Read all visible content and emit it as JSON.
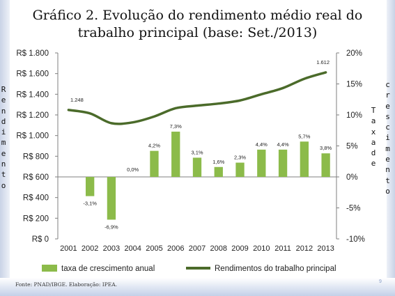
{
  "title_line1": "Gráfico 2. Evolução do rendimento médio real do",
  "title_line2": "trabalho principal (base: Set./2013)",
  "left_axis_label": "Rendimento",
  "right_axis_label_1": "Taxa de",
  "right_axis_label_2": "crescimento",
  "source": "Fonte: PNAD/IBGE. Elaboração: IPEA.",
  "page_number": "9",
  "chart_data": {
    "type": "bar+line",
    "categories": [
      "2001",
      "2002",
      "2003",
      "2004",
      "2005",
      "2006",
      "2007",
      "2008",
      "2009",
      "2010",
      "2011",
      "2012",
      "2013"
    ],
    "series": [
      {
        "name": "taxa de crescimento anual",
        "type": "bar",
        "axis": "right",
        "color": "#8cbb4a",
        "values": [
          null,
          -3.1,
          -6.9,
          0.0,
          4.2,
          7.3,
          3.1,
          1.6,
          2.3,
          4.4,
          4.4,
          5.7,
          3.8
        ],
        "labels": [
          "",
          "-3,1%",
          "-6,9%",
          "0,0%",
          "4,2%",
          "7,3%",
          "3,1%",
          "1,6%",
          "2,3%",
          "4,4%",
          "4,4%",
          "5,7%",
          "3,8%"
        ]
      },
      {
        "name": "Rendimentos do trabalho principal",
        "type": "line",
        "axis": "left",
        "color": "#4b6b2a",
        "values": [
          1248,
          1215,
          1120,
          1128,
          1185,
          1265,
          1290,
          1310,
          1340,
          1400,
          1460,
          1550,
          1612
        ],
        "point_labels": [
          {
            "x": "2001",
            "text": "1.248"
          },
          {
            "x": "2013",
            "text": "1.612"
          }
        ]
      }
    ],
    "y_left": {
      "min": 0,
      "max": 1800,
      "ticks": [
        0,
        200,
        400,
        600,
        800,
        1000,
        1200,
        1400,
        1600,
        1800
      ],
      "tick_labels": [
        "R$ 0",
        "R$ 200",
        "R$ 400",
        "R$ 600",
        "R$ 800",
        "R$ 1.000",
        "R$ 1.200",
        "R$ 1.400",
        "R$ 1.600",
        "R$ 1.800"
      ]
    },
    "y_right": {
      "min": -10,
      "max": 20,
      "ticks": [
        -10,
        -5,
        0,
        5,
        10,
        15,
        20
      ],
      "tick_labels": [
        "-10%",
        "-5%",
        "0%",
        "5%",
        "10%",
        "15%",
        "20%"
      ]
    },
    "grid": false,
    "legend_position": "bottom"
  }
}
